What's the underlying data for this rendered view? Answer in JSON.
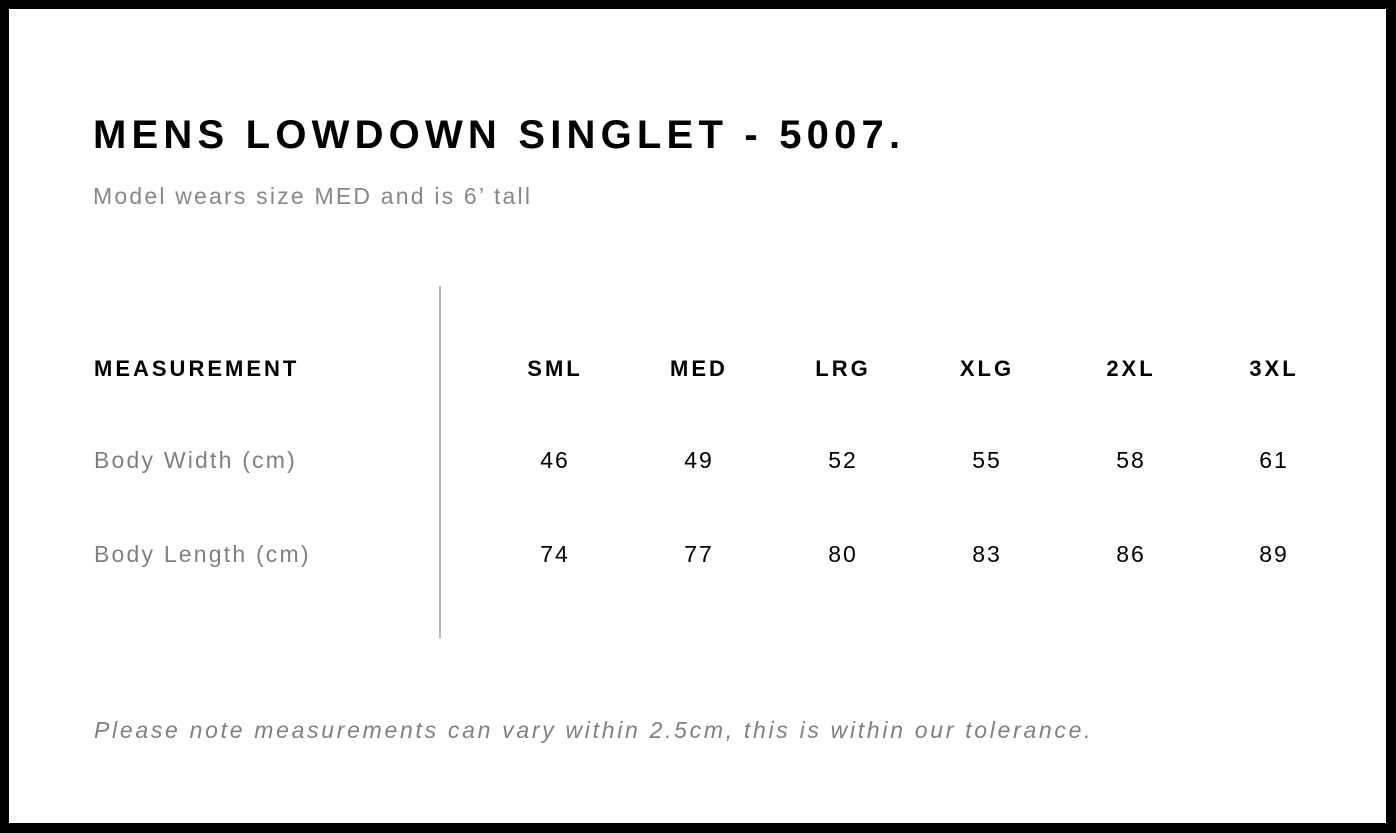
{
  "title": "MENS LOWDOWN SINGLET - 5007.",
  "subtitle": "Model wears size MED and is 6’ tall",
  "table": {
    "header_label": "MEASUREMENT",
    "sizes": [
      "SML",
      "MED",
      "LRG",
      "XLG",
      "2XL",
      "3XL"
    ],
    "rows": [
      {
        "label": "Body Width (cm)",
        "values": [
          "46",
          "49",
          "52",
          "55",
          "58",
          "61"
        ]
      },
      {
        "label": "Body Length (cm)",
        "values": [
          "74",
          "77",
          "80",
          "83",
          "86",
          "89"
        ]
      }
    ]
  },
  "note": "Please note measurements can vary within 2.5cm, this is within our tolerance."
}
